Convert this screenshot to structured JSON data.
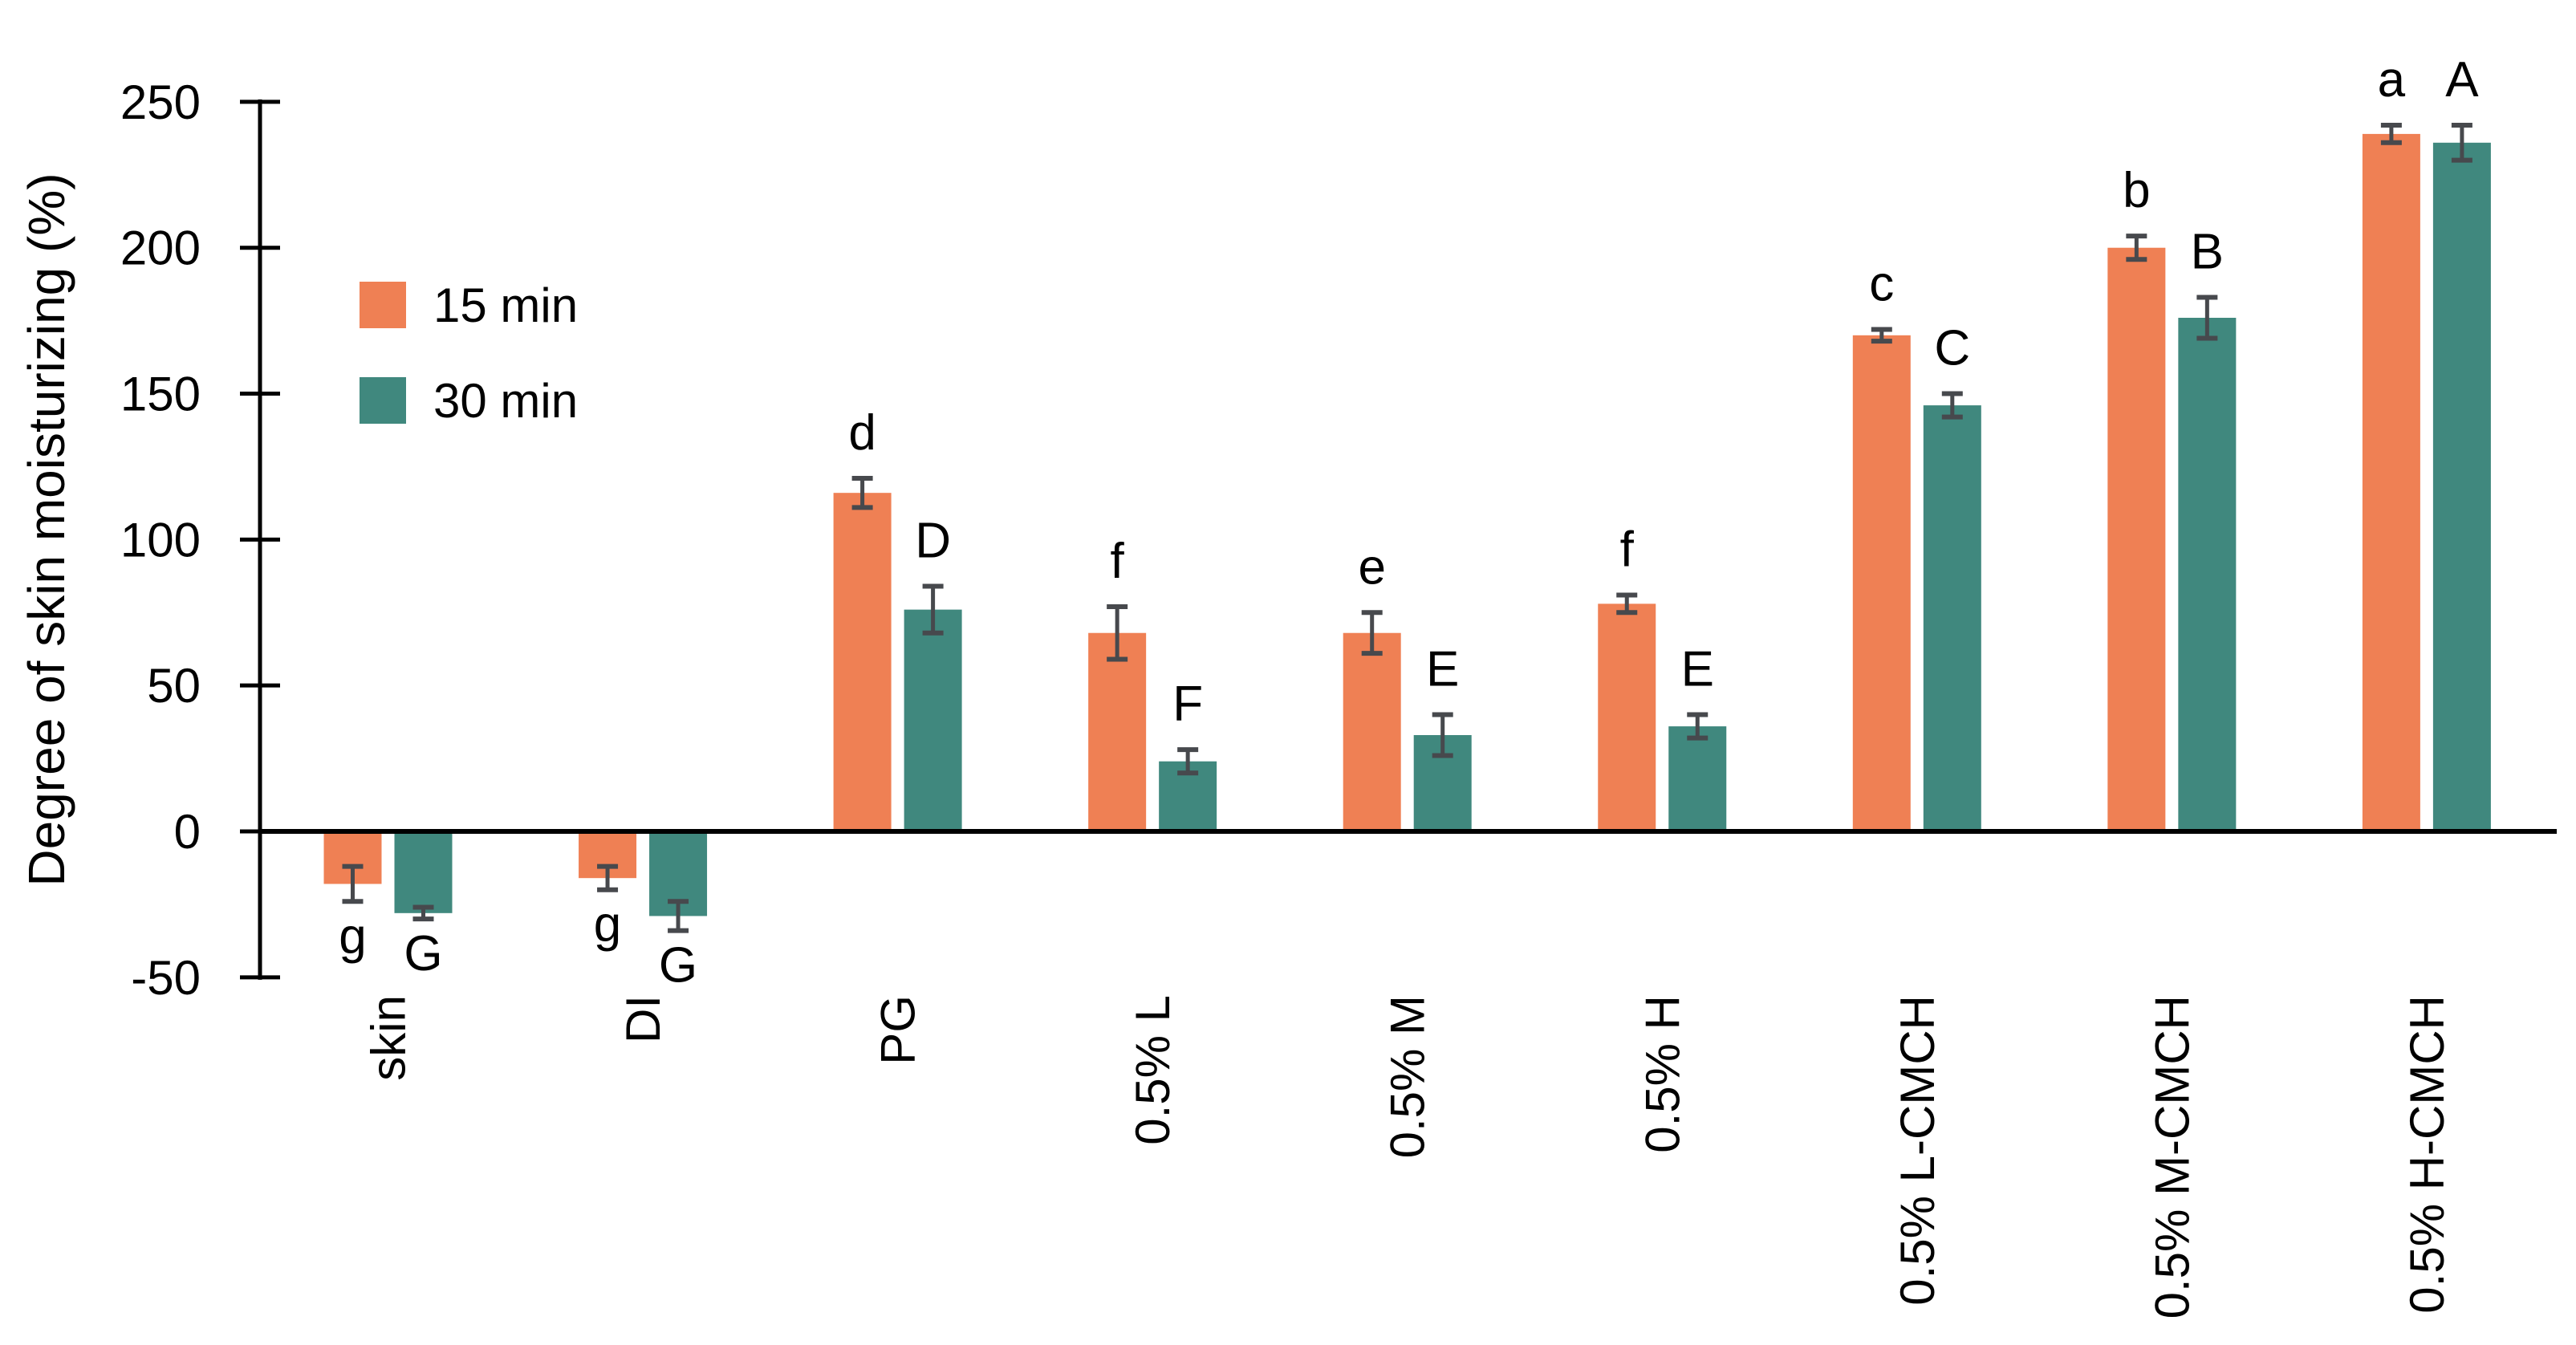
{
  "chart_data": {
    "type": "bar",
    "title": "",
    "xlabel": "",
    "ylabel": "Degree of skin moisturizing (%)",
    "ylim": [
      -50,
      250
    ],
    "yticks": [
      250,
      200,
      150,
      100,
      50,
      0,
      -50
    ],
    "grid": false,
    "legend_position": "upper-left-inside",
    "axis_color": "#000000",
    "error_bar_color": "#47494d",
    "categories": [
      "skin",
      "DI",
      "PG",
      "0.5% L",
      "0.5% M",
      "0.5% H",
      "0.5% L-CMCH",
      "0.5% M-CMCH",
      "0.5% H-CMCH"
    ],
    "series": [
      {
        "name": "15 min",
        "color": "#EF8054",
        "values": [
          -18,
          -16,
          116,
          68,
          68,
          78,
          170,
          200,
          239
        ],
        "errors": [
          6,
          4,
          5,
          9,
          7,
          3,
          2,
          4,
          3
        ],
        "sig_letters": [
          "g",
          "g",
          "d",
          "f",
          "e",
          "f",
          "c",
          "b",
          "a"
        ]
      },
      {
        "name": "30 min",
        "color": "#40887E",
        "values": [
          -28,
          -29,
          76,
          24,
          33,
          36,
          146,
          176,
          236
        ],
        "errors": [
          2,
          5,
          8,
          4,
          7,
          4,
          4,
          7,
          6
        ],
        "sig_letters": [
          "G",
          "G",
          "D",
          "F",
          "E",
          "E",
          "C",
          "B",
          "A"
        ]
      }
    ]
  }
}
